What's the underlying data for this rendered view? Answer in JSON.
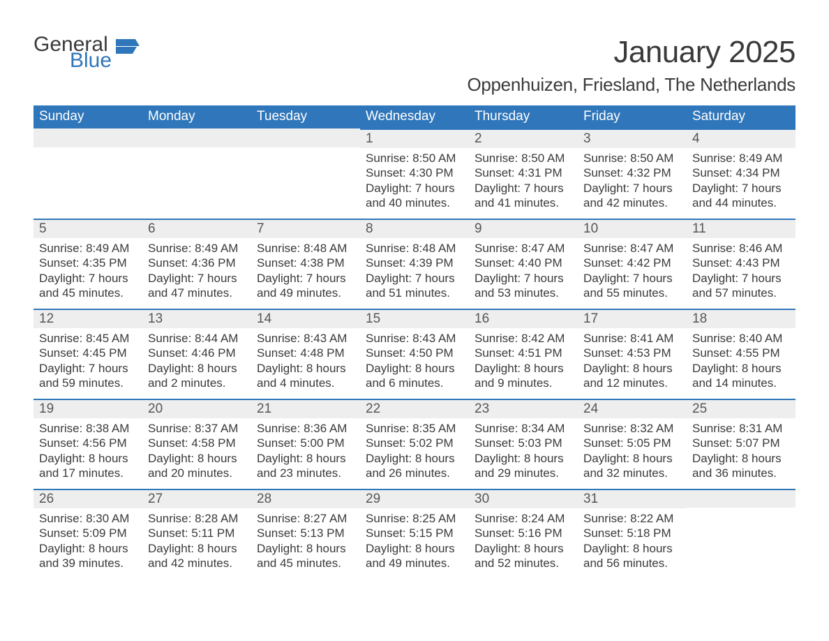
{
  "logo": {
    "word1": "General",
    "word2": "Blue",
    "flag_color": "#2f76ba",
    "word1_color": "#3a3a3a",
    "word2_color": "#2f76ba"
  },
  "title": "January 2025",
  "subtitle": "Oppenhuizen, Friesland, The Netherlands",
  "colors": {
    "header_bg": "#2f76ba",
    "header_text": "#ffffff",
    "day_border": "#2f76ba",
    "daynum_bg": "#eeeeee",
    "body_text": "#3a3a3a",
    "daynum_text": "#565656",
    "page_bg": "#ffffff"
  },
  "typography": {
    "title_fontsize": 44,
    "subtitle_fontsize": 26,
    "weekday_fontsize": 19,
    "daynum_fontsize": 19,
    "body_fontsize": 17
  },
  "weekdays": [
    "Sunday",
    "Monday",
    "Tuesday",
    "Wednesday",
    "Thursday",
    "Friday",
    "Saturday"
  ],
  "weeks": [
    [
      {
        "blank": true
      },
      {
        "blank": true
      },
      {
        "blank": true
      },
      {
        "n": "1",
        "sunrise": "Sunrise: 8:50 AM",
        "sunset": "Sunset: 4:30 PM",
        "day1": "Daylight: 7 hours",
        "day2": "and 40 minutes."
      },
      {
        "n": "2",
        "sunrise": "Sunrise: 8:50 AM",
        "sunset": "Sunset: 4:31 PM",
        "day1": "Daylight: 7 hours",
        "day2": "and 41 minutes."
      },
      {
        "n": "3",
        "sunrise": "Sunrise: 8:50 AM",
        "sunset": "Sunset: 4:32 PM",
        "day1": "Daylight: 7 hours",
        "day2": "and 42 minutes."
      },
      {
        "n": "4",
        "sunrise": "Sunrise: 8:49 AM",
        "sunset": "Sunset: 4:34 PM",
        "day1": "Daylight: 7 hours",
        "day2": "and 44 minutes."
      }
    ],
    [
      {
        "n": "5",
        "sunrise": "Sunrise: 8:49 AM",
        "sunset": "Sunset: 4:35 PM",
        "day1": "Daylight: 7 hours",
        "day2": "and 45 minutes."
      },
      {
        "n": "6",
        "sunrise": "Sunrise: 8:49 AM",
        "sunset": "Sunset: 4:36 PM",
        "day1": "Daylight: 7 hours",
        "day2": "and 47 minutes."
      },
      {
        "n": "7",
        "sunrise": "Sunrise: 8:48 AM",
        "sunset": "Sunset: 4:38 PM",
        "day1": "Daylight: 7 hours",
        "day2": "and 49 minutes."
      },
      {
        "n": "8",
        "sunrise": "Sunrise: 8:48 AM",
        "sunset": "Sunset: 4:39 PM",
        "day1": "Daylight: 7 hours",
        "day2": "and 51 minutes."
      },
      {
        "n": "9",
        "sunrise": "Sunrise: 8:47 AM",
        "sunset": "Sunset: 4:40 PM",
        "day1": "Daylight: 7 hours",
        "day2": "and 53 minutes."
      },
      {
        "n": "10",
        "sunrise": "Sunrise: 8:47 AM",
        "sunset": "Sunset: 4:42 PM",
        "day1": "Daylight: 7 hours",
        "day2": "and 55 minutes."
      },
      {
        "n": "11",
        "sunrise": "Sunrise: 8:46 AM",
        "sunset": "Sunset: 4:43 PM",
        "day1": "Daylight: 7 hours",
        "day2": "and 57 minutes."
      }
    ],
    [
      {
        "n": "12",
        "sunrise": "Sunrise: 8:45 AM",
        "sunset": "Sunset: 4:45 PM",
        "day1": "Daylight: 7 hours",
        "day2": "and 59 minutes."
      },
      {
        "n": "13",
        "sunrise": "Sunrise: 8:44 AM",
        "sunset": "Sunset: 4:46 PM",
        "day1": "Daylight: 8 hours",
        "day2": "and 2 minutes."
      },
      {
        "n": "14",
        "sunrise": "Sunrise: 8:43 AM",
        "sunset": "Sunset: 4:48 PM",
        "day1": "Daylight: 8 hours",
        "day2": "and 4 minutes."
      },
      {
        "n": "15",
        "sunrise": "Sunrise: 8:43 AM",
        "sunset": "Sunset: 4:50 PM",
        "day1": "Daylight: 8 hours",
        "day2": "and 6 minutes."
      },
      {
        "n": "16",
        "sunrise": "Sunrise: 8:42 AM",
        "sunset": "Sunset: 4:51 PM",
        "day1": "Daylight: 8 hours",
        "day2": "and 9 minutes."
      },
      {
        "n": "17",
        "sunrise": "Sunrise: 8:41 AM",
        "sunset": "Sunset: 4:53 PM",
        "day1": "Daylight: 8 hours",
        "day2": "and 12 minutes."
      },
      {
        "n": "18",
        "sunrise": "Sunrise: 8:40 AM",
        "sunset": "Sunset: 4:55 PM",
        "day1": "Daylight: 8 hours",
        "day2": "and 14 minutes."
      }
    ],
    [
      {
        "n": "19",
        "sunrise": "Sunrise: 8:38 AM",
        "sunset": "Sunset: 4:56 PM",
        "day1": "Daylight: 8 hours",
        "day2": "and 17 minutes."
      },
      {
        "n": "20",
        "sunrise": "Sunrise: 8:37 AM",
        "sunset": "Sunset: 4:58 PM",
        "day1": "Daylight: 8 hours",
        "day2": "and 20 minutes."
      },
      {
        "n": "21",
        "sunrise": "Sunrise: 8:36 AM",
        "sunset": "Sunset: 5:00 PM",
        "day1": "Daylight: 8 hours",
        "day2": "and 23 minutes."
      },
      {
        "n": "22",
        "sunrise": "Sunrise: 8:35 AM",
        "sunset": "Sunset: 5:02 PM",
        "day1": "Daylight: 8 hours",
        "day2": "and 26 minutes."
      },
      {
        "n": "23",
        "sunrise": "Sunrise: 8:34 AM",
        "sunset": "Sunset: 5:03 PM",
        "day1": "Daylight: 8 hours",
        "day2": "and 29 minutes."
      },
      {
        "n": "24",
        "sunrise": "Sunrise: 8:32 AM",
        "sunset": "Sunset: 5:05 PM",
        "day1": "Daylight: 8 hours",
        "day2": "and 32 minutes."
      },
      {
        "n": "25",
        "sunrise": "Sunrise: 8:31 AM",
        "sunset": "Sunset: 5:07 PM",
        "day1": "Daylight: 8 hours",
        "day2": "and 36 minutes."
      }
    ],
    [
      {
        "n": "26",
        "sunrise": "Sunrise: 8:30 AM",
        "sunset": "Sunset: 5:09 PM",
        "day1": "Daylight: 8 hours",
        "day2": "and 39 minutes."
      },
      {
        "n": "27",
        "sunrise": "Sunrise: 8:28 AM",
        "sunset": "Sunset: 5:11 PM",
        "day1": "Daylight: 8 hours",
        "day2": "and 42 minutes."
      },
      {
        "n": "28",
        "sunrise": "Sunrise: 8:27 AM",
        "sunset": "Sunset: 5:13 PM",
        "day1": "Daylight: 8 hours",
        "day2": "and 45 minutes."
      },
      {
        "n": "29",
        "sunrise": "Sunrise: 8:25 AM",
        "sunset": "Sunset: 5:15 PM",
        "day1": "Daylight: 8 hours",
        "day2": "and 49 minutes."
      },
      {
        "n": "30",
        "sunrise": "Sunrise: 8:24 AM",
        "sunset": "Sunset: 5:16 PM",
        "day1": "Daylight: 8 hours",
        "day2": "and 52 minutes."
      },
      {
        "n": "31",
        "sunrise": "Sunrise: 8:22 AM",
        "sunset": "Sunset: 5:18 PM",
        "day1": "Daylight: 8 hours",
        "day2": "and 56 minutes."
      },
      {
        "blank": true
      }
    ]
  ]
}
